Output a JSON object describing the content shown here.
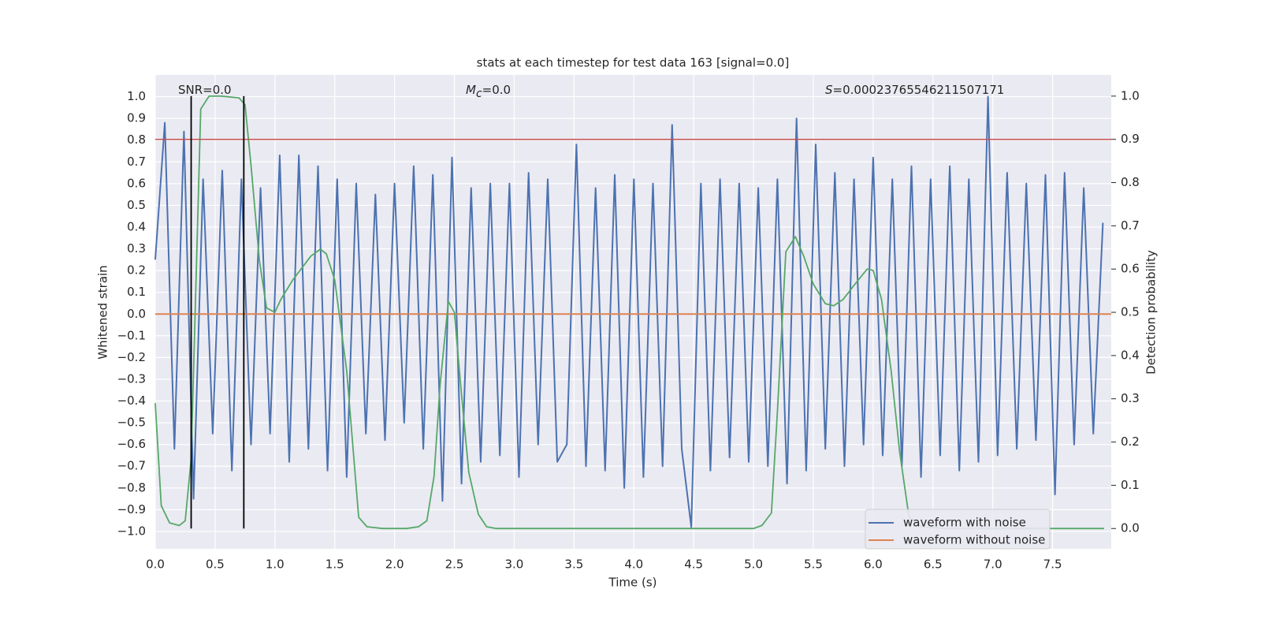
{
  "chart_data": {
    "type": "line",
    "title": "stats at each timestep for test data 163 [signal=0.0]",
    "x_label": "Time (s)",
    "y_label": "Whitened strain",
    "y2_label": "Detection probability",
    "annotations": [
      {
        "parts": [
          "SNR=0.0"
        ]
      },
      {
        "parts": [
          "M",
          "c",
          "=0.0"
        ]
      },
      {
        "parts": [
          "S",
          "=0.00023765546211507171"
        ]
      }
    ],
    "xlim": [
      0,
      7.99
    ],
    "ylim": [
      -1.08,
      1.1
    ],
    "y2lim": [
      -0.047,
      1.049
    ],
    "xticks": [
      {
        "value": 0,
        "label": "0.0"
      },
      {
        "value": 0.5,
        "label": "0.5"
      },
      {
        "value": 1,
        "label": "1.0"
      },
      {
        "value": 1.5,
        "label": "1.5"
      },
      {
        "value": 2,
        "label": "2.0"
      },
      {
        "value": 2.5,
        "label": "2.5"
      },
      {
        "value": 3,
        "label": "3.0"
      },
      {
        "value": 3.5,
        "label": "3.5"
      },
      {
        "value": 4,
        "label": "4.0"
      },
      {
        "value": 4.5,
        "label": "4.5"
      },
      {
        "value": 5,
        "label": "5.0"
      },
      {
        "value": 5.5,
        "label": "5.5"
      },
      {
        "value": 6,
        "label": "6.0"
      },
      {
        "value": 6.5,
        "label": "6.5"
      },
      {
        "value": 7,
        "label": "7.0"
      },
      {
        "value": 7.5,
        "label": "7.5"
      }
    ],
    "yticks": [
      {
        "value": -1,
        "label": "−1.0"
      },
      {
        "value": -0.9,
        "label": "−0.9"
      },
      {
        "value": -0.8,
        "label": "−0.8"
      },
      {
        "value": -0.7,
        "label": "−0.7"
      },
      {
        "value": -0.6,
        "label": "−0.6"
      },
      {
        "value": -0.5,
        "label": "−0.5"
      },
      {
        "value": -0.4,
        "label": "−0.4"
      },
      {
        "value": -0.3,
        "label": "−0.3"
      },
      {
        "value": -0.2,
        "label": "−0.2"
      },
      {
        "value": -0.1,
        "label": "−0.1"
      },
      {
        "value": 0,
        "label": "0.0"
      },
      {
        "value": 0.1,
        "label": "0.1"
      },
      {
        "value": 0.2,
        "label": "0.2"
      },
      {
        "value": 0.3,
        "label": "0.3"
      },
      {
        "value": 0.4,
        "label": "0.4"
      },
      {
        "value": 0.5,
        "label": "0.5"
      },
      {
        "value": 0.6,
        "label": "0.6"
      },
      {
        "value": 0.7,
        "label": "0.7"
      },
      {
        "value": 0.8,
        "label": "0.8"
      },
      {
        "value": 0.9,
        "label": "0.9"
      },
      {
        "value": 1,
        "label": "1.0"
      }
    ],
    "y2ticks": [
      {
        "value": 0,
        "label": "0.0"
      },
      {
        "value": 0.1,
        "label": "0.1"
      },
      {
        "value": 0.2,
        "label": "0.2"
      },
      {
        "value": 0.3,
        "label": "0.3"
      },
      {
        "value": 0.4,
        "label": "0.4"
      },
      {
        "value": 0.5,
        "label": "0.5"
      },
      {
        "value": 0.6,
        "label": "0.6"
      },
      {
        "value": 0.7,
        "label": "0.7"
      },
      {
        "value": 0.8,
        "label": "0.8"
      },
      {
        "value": 0.9,
        "label": "0.9"
      },
      {
        "value": 1,
        "label": "1.0"
      }
    ],
    "grid": true,
    "legend": "lower right",
    "threshold": {
      "value": 0.9,
      "axis": "y2",
      "color": "#c44e52"
    },
    "vlines": {
      "x": [
        0.3,
        0.74
      ],
      "color": "#000000"
    },
    "series": [
      {
        "name": "waveform with noise",
        "color": "#4c72b0",
        "x": [
          0,
          0.08,
          0.16,
          0.24,
          0.32,
          0.4,
          0.48,
          0.56,
          0.64,
          0.72,
          0.8,
          0.88,
          0.96,
          1.04,
          1.12,
          1.2,
          1.28,
          1.36,
          1.44,
          1.52,
          1.6,
          1.68,
          1.76,
          1.84,
          1.92,
          2,
          2.08,
          2.16,
          2.24,
          2.32,
          2.4,
          2.48,
          2.56,
          2.64,
          2.72,
          2.8,
          2.88,
          2.96,
          3.04,
          3.12,
          3.2,
          3.28,
          3.36,
          3.44,
          3.52,
          3.6,
          3.68,
          3.76,
          3.84,
          3.92,
          4,
          4.08,
          4.16,
          4.24,
          4.32,
          4.4,
          4.48,
          4.56,
          4.64,
          4.72,
          4.8,
          4.88,
          4.96,
          5.04,
          5.12,
          5.2,
          5.28,
          5.36,
          5.44,
          5.52,
          5.6,
          5.68,
          5.76,
          5.84,
          5.92,
          6,
          6.08,
          6.16,
          6.24,
          6.32,
          6.4,
          6.48,
          6.56,
          6.64,
          6.72,
          6.8,
          6.88,
          6.96,
          7.04,
          7.12,
          7.2,
          7.28,
          7.36,
          7.44,
          7.52,
          7.6,
          7.68,
          7.76,
          7.84,
          7.92
        ],
        "values": [
          0.25,
          0.88,
          -0.62,
          0.84,
          -0.85,
          0.62,
          -0.55,
          0.66,
          -0.72,
          0.62,
          -0.6,
          0.58,
          -0.55,
          0.73,
          -0.68,
          0.73,
          -0.62,
          0.68,
          -0.72,
          0.62,
          -0.75,
          0.6,
          -0.55,
          0.55,
          -0.58,
          0.6,
          -0.5,
          0.68,
          -0.62,
          0.64,
          -0.86,
          0.72,
          -0.78,
          0.58,
          -0.68,
          0.6,
          -0.65,
          0.6,
          -0.75,
          0.65,
          -0.6,
          0.62,
          -0.68,
          -0.6,
          0.78,
          -0.7,
          0.58,
          -0.72,
          0.64,
          -0.8,
          0.62,
          -0.75,
          0.6,
          -0.7,
          0.87,
          -0.62,
          -0.98,
          0.6,
          -0.72,
          0.62,
          -0.66,
          0.6,
          -0.68,
          0.58,
          -0.7,
          0.62,
          -0.78,
          0.9,
          -0.72,
          0.78,
          -0.62,
          0.65,
          -0.7,
          0.62,
          -0.6,
          0.72,
          -0.65,
          0.62,
          -0.7,
          0.68,
          -0.75,
          0.62,
          -0.65,
          0.68,
          -0.72,
          0.62,
          -0.68,
          1.0,
          -0.65,
          0.65,
          -0.62,
          0.6,
          -0.58,
          0.64,
          -0.83,
          0.65,
          -0.6,
          0.58,
          -0.55,
          0.42
        ]
      },
      {
        "name": "waveform without noise",
        "color": "#dd8452",
        "x": [
          0,
          7.99
        ],
        "values": [
          0,
          0
        ]
      },
      {
        "color": "#55a868",
        "axis": "y2",
        "x": [
          0,
          0.05,
          0.12,
          0.2,
          0.25,
          0.3,
          0.38,
          0.45,
          0.55,
          0.7,
          0.75,
          0.8,
          0.87,
          0.93,
          1,
          1.05,
          1.15,
          1.3,
          1.38,
          1.43,
          1.5,
          1.6,
          1.7,
          1.77,
          1.9,
          2.1,
          2.2,
          2.27,
          2.33,
          2.38,
          2.45,
          2.5,
          2.55,
          2.62,
          2.7,
          2.77,
          2.85,
          5,
          5.07,
          5.15,
          5.2,
          5.27,
          5.35,
          5.42,
          5.5,
          5.6,
          5.67,
          5.75,
          5.85,
          5.95,
          6,
          6.07,
          6.15,
          6.22,
          6.3,
          6.4,
          6.6,
          7.93
        ],
        "values": [
          0.29,
          0.053,
          0.013,
          0.007,
          0.018,
          0.16,
          0.97,
          1.0,
          1.0,
          0.996,
          0.98,
          0.84,
          0.62,
          0.51,
          0.5,
          0.53,
          0.575,
          0.63,
          0.646,
          0.635,
          0.575,
          0.365,
          0.026,
          0.004,
          0,
          0,
          0.004,
          0.018,
          0.12,
          0.33,
          0.525,
          0.5,
          0.34,
          0.13,
          0.033,
          0.004,
          0,
          0,
          0.007,
          0.036,
          0.27,
          0.64,
          0.675,
          0.63,
          0.565,
          0.52,
          0.515,
          0.53,
          0.566,
          0.6,
          0.597,
          0.53,
          0.365,
          0.18,
          0.026,
          0.004,
          0,
          0
        ]
      }
    ]
  }
}
